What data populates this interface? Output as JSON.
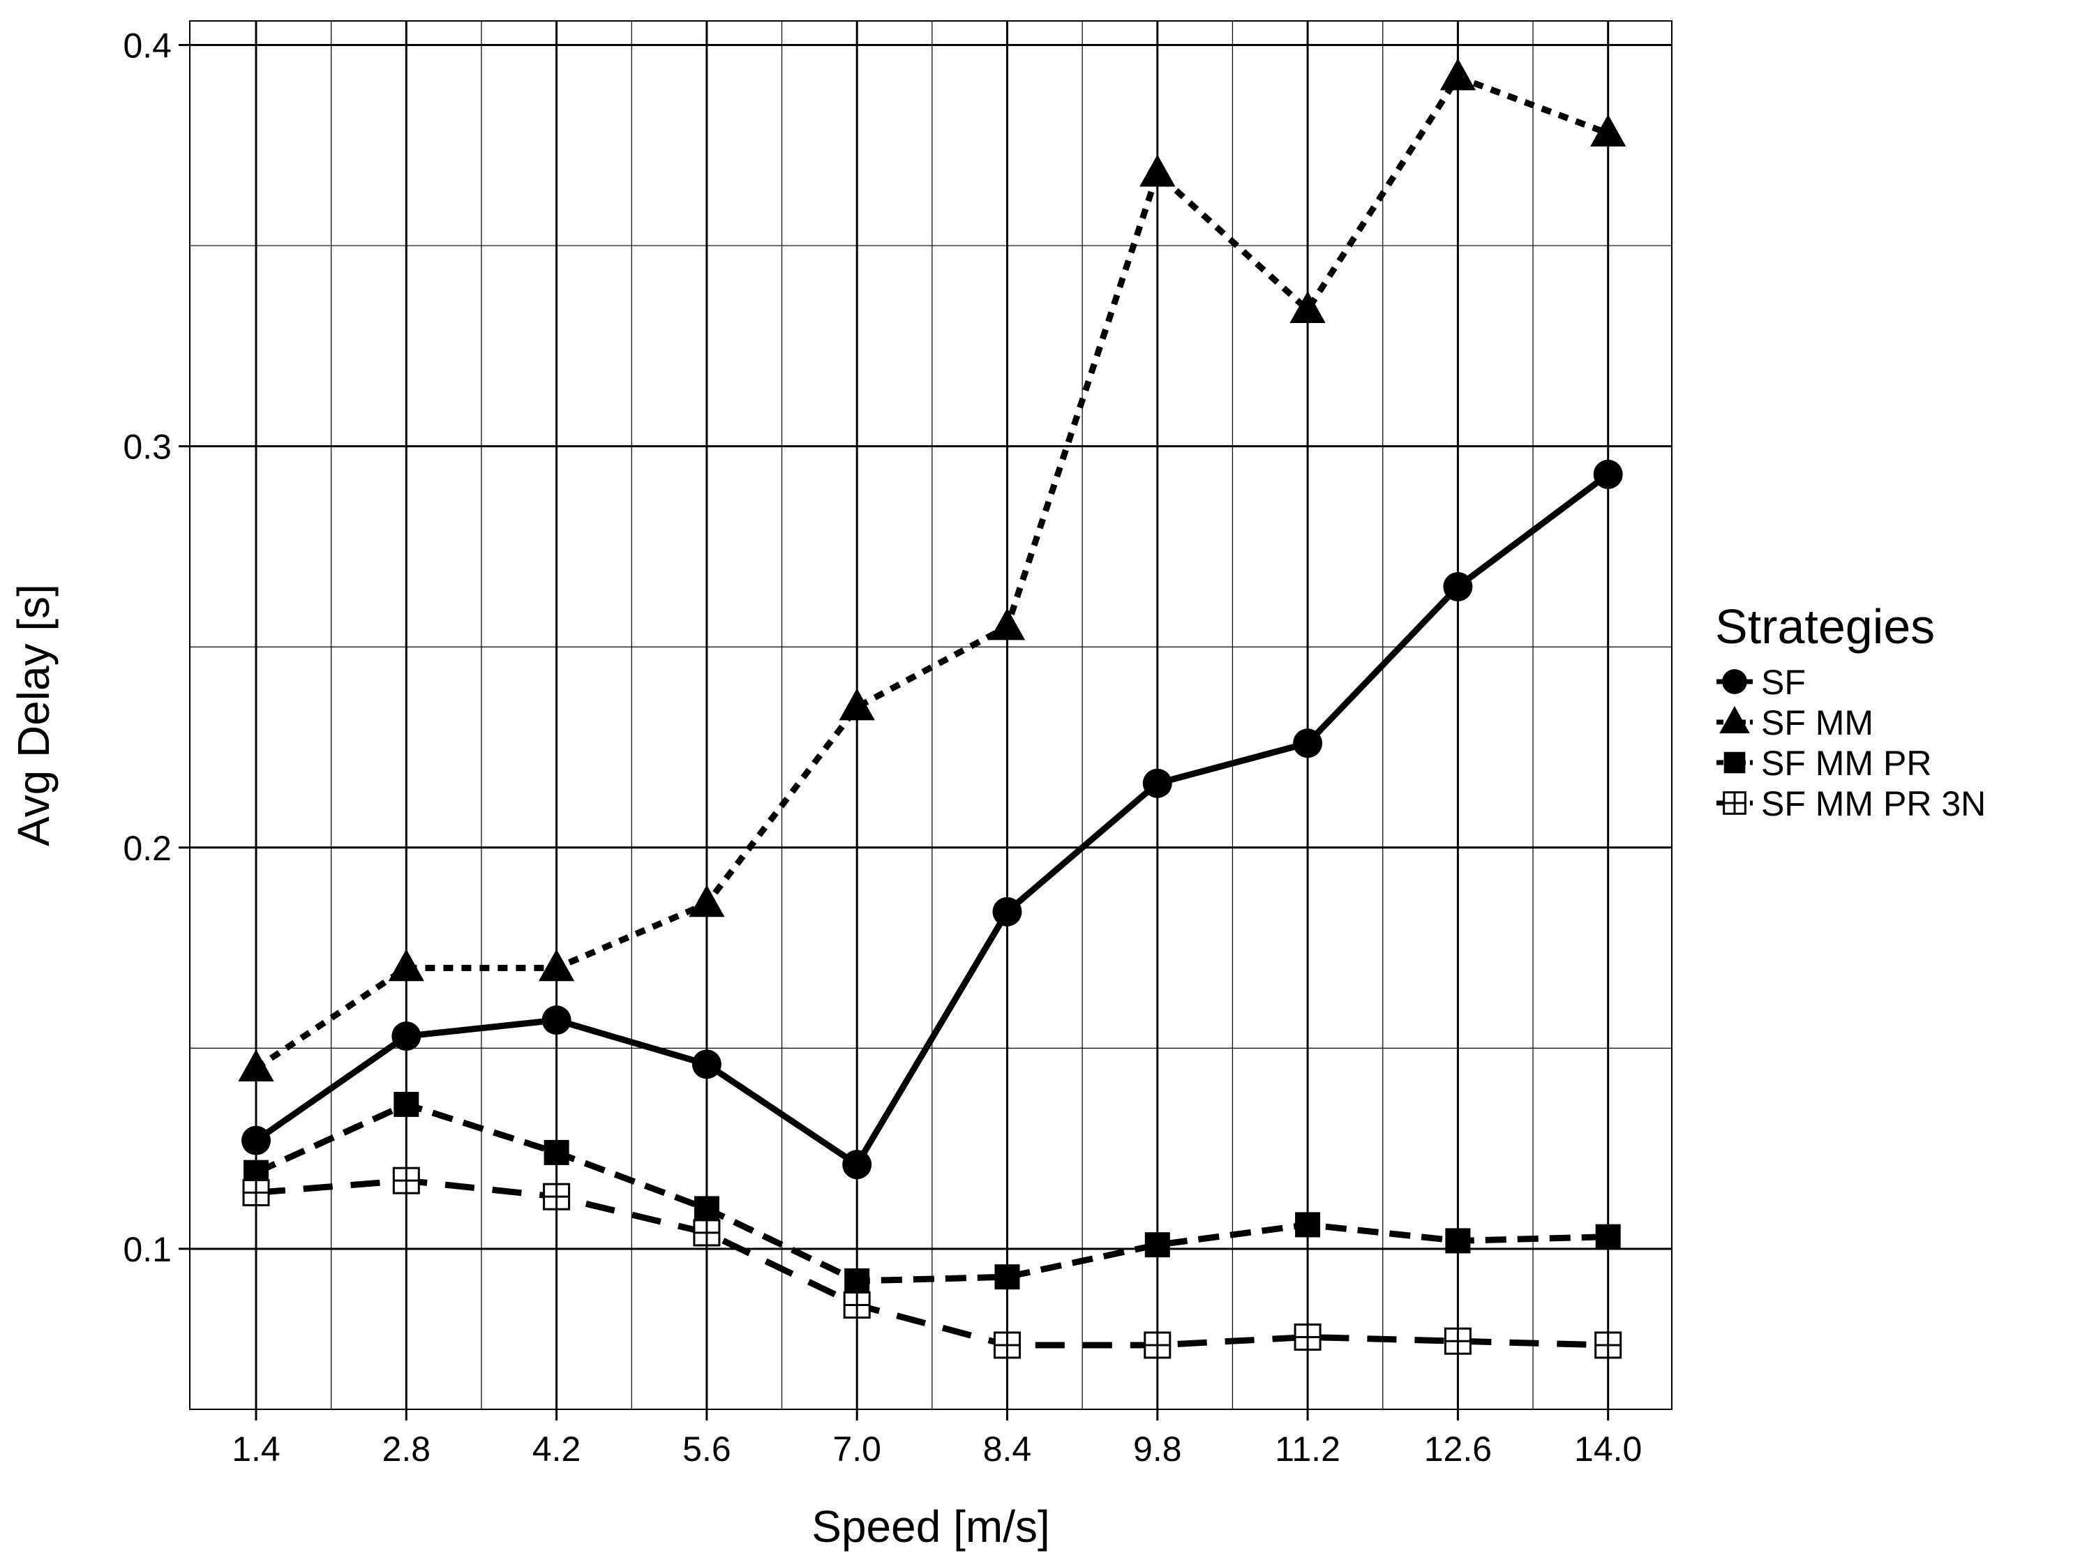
{
  "chart_data": {
    "type": "line",
    "title": "",
    "xlabel": "Speed [m/s]",
    "ylabel": "Avg Delay [s]",
    "categories": [
      "1.4",
      "2.8",
      "4.2",
      "5.6",
      "7.0",
      "8.4",
      "9.8",
      "11.2",
      "12.6",
      "14.0"
    ],
    "ylim": [
      0.06,
      0.406
    ],
    "yticks": [
      0.1,
      0.2,
      0.3,
      0.4
    ],
    "ytick_labels": [
      "0.1",
      "0.2",
      "0.3",
      "0.4"
    ],
    "grid": true,
    "legend_title": "Strategies",
    "legend_position": "right",
    "series": [
      {
        "name": "SF",
        "marker": "circle",
        "linestyle": "solid",
        "values": [
          0.127,
          0.153,
          0.157,
          0.146,
          0.121,
          0.184,
          0.216,
          0.226,
          0.265,
          0.293
        ]
      },
      {
        "name": "SF MM",
        "marker": "triangle",
        "linestyle": "dotted",
        "values": [
          0.145,
          0.17,
          0.17,
          0.186,
          0.235,
          0.255,
          0.368,
          0.334,
          0.392,
          0.378
        ]
      },
      {
        "name": "SF MM PR",
        "marker": "square",
        "linestyle": "dashed",
        "values": [
          0.119,
          0.136,
          0.124,
          0.11,
          0.092,
          0.093,
          0.101,
          0.106,
          0.102,
          0.103
        ]
      },
      {
        "name": "SF MM PR 3N",
        "marker": "square-open-cross",
        "linestyle": "longdash",
        "values": [
          0.114,
          0.117,
          0.113,
          0.104,
          0.086,
          0.076,
          0.076,
          0.078,
          0.077,
          0.076
        ]
      }
    ]
  }
}
